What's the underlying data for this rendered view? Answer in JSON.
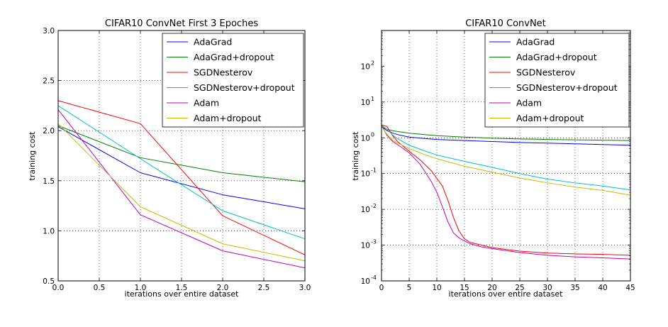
{
  "chart_data": [
    {
      "type": "line",
      "title": "CIFAR10 ConvNet First 3 Epoches",
      "xlabel": "iterations over entire dataset",
      "ylabel": "training cost",
      "xlim": [
        0,
        3
      ],
      "ylim": [
        0.5,
        3.0
      ],
      "yscale": "linear",
      "grid": true,
      "legend": "top-right",
      "x_ticks": [
        0.0,
        0.5,
        1.0,
        1.5,
        2.0,
        2.5,
        3.0
      ],
      "x_tick_labels": [
        "0.0",
        "0.5",
        "1.0",
        "1.5",
        "2.0",
        "2.5",
        "3.0"
      ],
      "y_ticks": [
        0.5,
        1.0,
        1.5,
        2.0,
        2.5,
        3.0
      ],
      "y_tick_labels": [
        "0.5",
        "1.0",
        "1.5",
        "2.0",
        "2.5",
        "3.0"
      ],
      "series": [
        {
          "name": "AdaGrad",
          "color": "#0000ff",
          "x": [
            0,
            1,
            2,
            3
          ],
          "y": [
            2.04,
            1.58,
            1.36,
            1.22
          ]
        },
        {
          "name": "AdaGrad+dropout",
          "color": "#007f00",
          "x": [
            0,
            1,
            2,
            3
          ],
          "y": [
            2.05,
            1.73,
            1.58,
            1.49
          ]
        },
        {
          "name": "SGDNesterov",
          "color": "#ff0000",
          "x": [
            0,
            1,
            2,
            3
          ],
          "y": [
            2.3,
            2.07,
            1.15,
            0.76
          ]
        },
        {
          "name": "SGDNesterov+dropout",
          "color": "#00bfbf",
          "x": [
            0,
            1,
            2,
            3
          ],
          "y": [
            2.25,
            1.72,
            1.2,
            0.92
          ]
        },
        {
          "name": "Adam",
          "color": "#bf00bf",
          "x": [
            0,
            1,
            2,
            3
          ],
          "y": [
            2.21,
            1.16,
            0.8,
            0.63
          ]
        },
        {
          "name": "Adam+dropout",
          "color": "#bfbf00",
          "x": [
            0,
            1,
            2,
            3
          ],
          "y": [
            2.07,
            1.24,
            0.87,
            0.7
          ]
        }
      ]
    },
    {
      "type": "line",
      "title": "CIFAR10 ConvNet",
      "xlabel": "iterations over entire dataset",
      "ylabel": "training cost",
      "xlim": [
        0,
        45
      ],
      "ylim": [
        0.0001,
        1000
      ],
      "yscale": "log",
      "grid": true,
      "legend": "top-right",
      "x_ticks": [
        0,
        5,
        10,
        15,
        20,
        25,
        30,
        35,
        40,
        45
      ],
      "x_tick_labels": [
        "0",
        "5",
        "10",
        "15",
        "20",
        "25",
        "30",
        "35",
        "40",
        "45"
      ],
      "y_ticks": [
        0.0001,
        0.001,
        0.01,
        0.1,
        1,
        10,
        100
      ],
      "y_tick_labels": [
        {
          "base": "10",
          "exp": "-4"
        },
        {
          "base": "10",
          "exp": "-3"
        },
        {
          "base": "10",
          "exp": "-2"
        },
        {
          "base": "10",
          "exp": "-1"
        },
        {
          "base": "10",
          "exp": "0"
        },
        {
          "base": "10",
          "exp": "1"
        },
        {
          "base": "10",
          "exp": "2"
        }
      ],
      "series": [
        {
          "name": "AdaGrad",
          "color": "#0000ff",
          "x": [
            0,
            1,
            2,
            3,
            5,
            8,
            10,
            15,
            20,
            25,
            30,
            35,
            40,
            45
          ],
          "y": [
            2.04,
            1.58,
            1.36,
            1.22,
            1.05,
            0.95,
            0.9,
            0.84,
            0.79,
            0.74,
            0.71,
            0.68,
            0.65,
            0.62
          ]
        },
        {
          "name": "AdaGrad+dropout",
          "color": "#007f00",
          "x": [
            0,
            1,
            2,
            3,
            5,
            8,
            10,
            15,
            20,
            25,
            30,
            35,
            40,
            45
          ],
          "y": [
            2.05,
            1.73,
            1.58,
            1.49,
            1.35,
            1.22,
            1.15,
            1.05,
            0.98,
            0.93,
            0.9,
            0.88,
            0.86,
            0.84
          ]
        },
        {
          "name": "SGDNesterov",
          "color": "#ff0000",
          "x": [
            0,
            1,
            2,
            3,
            5,
            7,
            9,
            11,
            12,
            13,
            14,
            15,
            16,
            17,
            20,
            25,
            30,
            35,
            40,
            45
          ],
          "y": [
            2.3,
            2.07,
            1.15,
            0.76,
            0.42,
            0.24,
            0.12,
            0.045,
            0.018,
            0.006,
            0.0025,
            0.0015,
            0.0012,
            0.0011,
            0.00085,
            0.00068,
            0.0006,
            0.00057,
            0.00055,
            0.00052
          ]
        },
        {
          "name": "SGDNesterov+dropout",
          "color": "#00bfbf",
          "x": [
            0,
            1,
            2,
            3,
            5,
            8,
            10,
            15,
            20,
            25,
            30,
            35,
            40,
            45
          ],
          "y": [
            2.25,
            1.72,
            1.2,
            0.92,
            0.62,
            0.42,
            0.33,
            0.22,
            0.15,
            0.1,
            0.07,
            0.055,
            0.045,
            0.035
          ]
        },
        {
          "name": "Adam",
          "color": "#bf00bf",
          "x": [
            0,
            1,
            2,
            3,
            5,
            7,
            9,
            10,
            11,
            12,
            13,
            14,
            15,
            16,
            18,
            20,
            25,
            30,
            35,
            40,
            45
          ],
          "y": [
            2.21,
            1.16,
            0.8,
            0.63,
            0.38,
            0.18,
            0.06,
            0.03,
            0.012,
            0.0045,
            0.0022,
            0.0016,
            0.0013,
            0.0011,
            0.0009,
            0.0008,
            0.00062,
            0.00052,
            0.00047,
            0.00044,
            0.00041
          ]
        },
        {
          "name": "Adam+dropout",
          "color": "#bfbf00",
          "x": [
            0,
            1,
            2,
            3,
            5,
            8,
            10,
            15,
            20,
            25,
            30,
            35,
            40,
            45
          ],
          "y": [
            2.07,
            1.24,
            0.87,
            0.7,
            0.5,
            0.33,
            0.26,
            0.16,
            0.11,
            0.075,
            0.055,
            0.042,
            0.034,
            0.025
          ]
        }
      ]
    }
  ]
}
